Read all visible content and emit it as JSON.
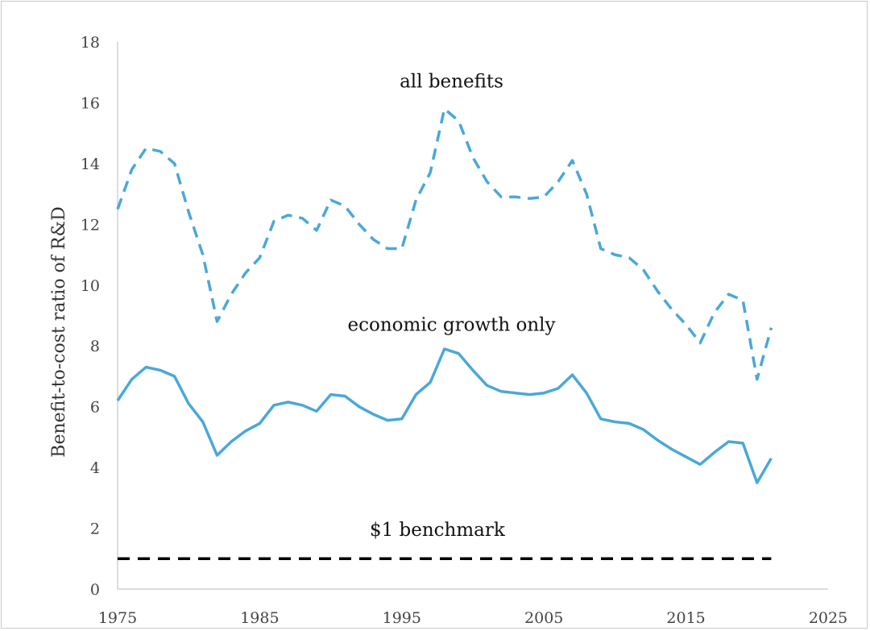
{
  "chart_data": {
    "type": "line",
    "ylabel": "Benefit-to-cost ratio of R&D",
    "xlabel": "",
    "title": "",
    "xlim": [
      1975,
      2025
    ],
    "ylim": [
      0,
      18
    ],
    "x_ticks": [
      1975,
      1985,
      1995,
      2005,
      2015,
      2025
    ],
    "y_ticks": [
      0,
      2,
      4,
      6,
      8,
      10,
      12,
      14,
      16,
      18
    ],
    "grid": false,
    "legend": "none",
    "series": [
      {
        "label": "all benefits",
        "color": "#4aa8d8",
        "style": "dashed",
        "points": [
          [
            1975,
            12.5
          ],
          [
            1976,
            13.8
          ],
          [
            1977,
            14.5
          ],
          [
            1978,
            14.4
          ],
          [
            1979,
            14.0
          ],
          [
            1980,
            12.4
          ],
          [
            1981,
            11.0
          ],
          [
            1982,
            8.8
          ],
          [
            1983,
            9.7
          ],
          [
            1984,
            10.4
          ],
          [
            1985,
            10.9
          ],
          [
            1986,
            12.1
          ],
          [
            1987,
            12.3
          ],
          [
            1988,
            12.2
          ],
          [
            1989,
            11.8
          ],
          [
            1990,
            12.8
          ],
          [
            1991,
            12.6
          ],
          [
            1992,
            12.0
          ],
          [
            1993,
            11.5
          ],
          [
            1994,
            11.2
          ],
          [
            1995,
            11.2
          ],
          [
            1996,
            12.8
          ],
          [
            1997,
            13.7
          ],
          [
            1998,
            15.8
          ],
          [
            1999,
            15.4
          ],
          [
            2000,
            14.2
          ],
          [
            2001,
            13.4
          ],
          [
            2002,
            12.9
          ],
          [
            2003,
            12.9
          ],
          [
            2004,
            12.85
          ],
          [
            2005,
            12.9
          ],
          [
            2006,
            13.4
          ],
          [
            2007,
            14.1
          ],
          [
            2008,
            13.0
          ],
          [
            2009,
            11.2
          ],
          [
            2010,
            11.0
          ],
          [
            2011,
            10.9
          ],
          [
            2012,
            10.5
          ],
          [
            2013,
            9.8
          ],
          [
            2014,
            9.2
          ],
          [
            2015,
            8.7
          ],
          [
            2016,
            8.1
          ],
          [
            2017,
            9.1
          ],
          [
            2018,
            9.7
          ],
          [
            2019,
            9.5
          ],
          [
            2020,
            6.9
          ],
          [
            2021,
            8.6
          ]
        ]
      },
      {
        "label": "economic growth only",
        "color": "#4aa8d8",
        "style": "solid",
        "points": [
          [
            1975,
            6.2
          ],
          [
            1976,
            6.9
          ],
          [
            1977,
            7.3
          ],
          [
            1978,
            7.2
          ],
          [
            1979,
            7.0
          ],
          [
            1980,
            6.1
          ],
          [
            1981,
            5.5
          ],
          [
            1982,
            4.4
          ],
          [
            1983,
            4.85
          ],
          [
            1984,
            5.2
          ],
          [
            1985,
            5.45
          ],
          [
            1986,
            6.05
          ],
          [
            1987,
            6.15
          ],
          [
            1988,
            6.05
          ],
          [
            1989,
            5.85
          ],
          [
            1990,
            6.4
          ],
          [
            1991,
            6.35
          ],
          [
            1992,
            6.0
          ],
          [
            1993,
            5.75
          ],
          [
            1994,
            5.55
          ],
          [
            1995,
            5.6
          ],
          [
            1996,
            6.4
          ],
          [
            1997,
            6.8
          ],
          [
            1998,
            7.9
          ],
          [
            1999,
            7.75
          ],
          [
            2000,
            7.2
          ],
          [
            2001,
            6.7
          ],
          [
            2002,
            6.5
          ],
          [
            2003,
            6.45
          ],
          [
            2004,
            6.4
          ],
          [
            2005,
            6.45
          ],
          [
            2006,
            6.6
          ],
          [
            2007,
            7.05
          ],
          [
            2008,
            6.45
          ],
          [
            2009,
            5.6
          ],
          [
            2010,
            5.5
          ],
          [
            2011,
            5.45
          ],
          [
            2012,
            5.25
          ],
          [
            2013,
            4.9
          ],
          [
            2014,
            4.6
          ],
          [
            2015,
            4.35
          ],
          [
            2016,
            4.1
          ],
          [
            2017,
            4.5
          ],
          [
            2018,
            4.85
          ],
          [
            2019,
            4.8
          ],
          [
            2020,
            3.5
          ],
          [
            2021,
            4.3
          ]
        ]
      },
      {
        "label": "$1 benchmark",
        "color": "#000000",
        "style": "dashed",
        "points": [
          [
            1975,
            1.0
          ],
          [
            2021,
            1.0
          ]
        ]
      }
    ],
    "annotations": [
      {
        "text": "all benefits",
        "x": 1998.5,
        "y": 16.5
      },
      {
        "text": "economic growth only",
        "x": 1998.5,
        "y": 8.5
      },
      {
        "text": "$1 benchmark",
        "x": 1997.5,
        "y": 1.75
      }
    ]
  }
}
